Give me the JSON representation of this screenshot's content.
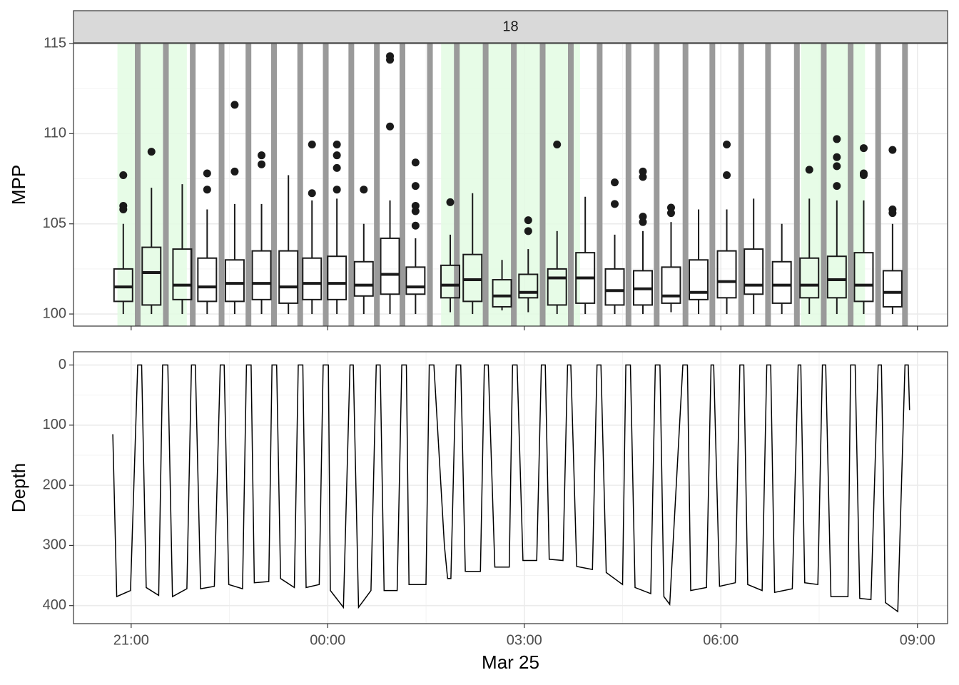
{
  "chart_data": [
    {
      "type": "box",
      "strip": "18",
      "ylabel": "MPP",
      "xlim": [
        -3.88,
        9.46
      ],
      "ylim": [
        99.33,
        115
      ],
      "yticks": [
        100,
        105,
        110,
        115
      ],
      "xticks": [
        -3,
        0,
        3,
        6,
        9
      ],
      "grid": true,
      "shaded": [
        [
          -3.21,
          -2.15
        ],
        [
          1.73,
          3.85
        ],
        [
          7.22,
          8.2
        ]
      ],
      "shade_color": "#e3fbe3",
      "surface_times": [
        -2.9,
        -2.47,
        -2.06,
        -1.62,
        -1.21,
        -0.82,
        -0.42,
        -0.03,
        0.36,
        0.75,
        1.14,
        1.56,
        1.97,
        2.41,
        2.84,
        3.28,
        3.71,
        4.15,
        4.59,
        5.02,
        5.46,
        5.87,
        6.31,
        6.72,
        7.16,
        7.57,
        7.98,
        8.4,
        8.81
      ],
      "surface_color": "#9a9a9a",
      "boxes": [
        {
          "x": -3.12,
          "low": 100,
          "q1": 100.7,
          "median": 101.5,
          "q3": 102.5,
          "high": 105,
          "outliers": [
            107.7,
            106,
            105.8
          ]
        },
        {
          "x": -2.69,
          "low": 100,
          "q1": 100.5,
          "median": 102.3,
          "q3": 103.7,
          "high": 107,
          "outliers": [
            109
          ]
        },
        {
          "x": -2.22,
          "low": 100,
          "q1": 100.8,
          "median": 101.6,
          "q3": 103.6,
          "high": 107.2,
          "outliers": []
        },
        {
          "x": -1.84,
          "low": 100,
          "q1": 100.7,
          "median": 101.5,
          "q3": 103.1,
          "high": 105.8,
          "outliers": [
            107.8,
            106.9
          ]
        },
        {
          "x": -1.42,
          "low": 100,
          "q1": 100.7,
          "median": 101.7,
          "q3": 103,
          "high": 106.1,
          "outliers": [
            111.6,
            107.9
          ]
        },
        {
          "x": -1.01,
          "low": 100,
          "q1": 100.8,
          "median": 101.7,
          "q3": 103.5,
          "high": 106.1,
          "outliers": [
            108.8,
            108.3
          ]
        },
        {
          "x": -0.6,
          "low": 100,
          "q1": 100.6,
          "median": 101.5,
          "q3": 103.5,
          "high": 107.7,
          "outliers": []
        },
        {
          "x": -0.24,
          "low": 100,
          "q1": 100.8,
          "median": 101.7,
          "q3": 103.1,
          "high": 106.3,
          "outliers": [
            109.4,
            106.7
          ]
        },
        {
          "x": 0.14,
          "low": 100,
          "q1": 100.8,
          "median": 101.7,
          "q3": 103.2,
          "high": 106.4,
          "outliers": [
            109.4,
            108.8,
            108.1,
            106.9
          ]
        },
        {
          "x": 0.55,
          "low": 100,
          "q1": 101,
          "median": 101.6,
          "q3": 102.9,
          "high": 105,
          "outliers": [
            106.9
          ]
        },
        {
          "x": 0.95,
          "low": 100,
          "q1": 101.1,
          "median": 102.2,
          "q3": 104.2,
          "high": 106.3,
          "outliers": [
            114.3,
            114.1,
            110.4
          ]
        },
        {
          "x": 1.34,
          "low": 100,
          "q1": 101.1,
          "median": 101.5,
          "q3": 102.6,
          "high": 104.2,
          "outliers": [
            108.4,
            107.1,
            106,
            105.7,
            104.9
          ]
        },
        {
          "x": 1.87,
          "low": 100.1,
          "q1": 100.9,
          "median": 101.6,
          "q3": 102.7,
          "high": 104.4,
          "outliers": [
            106.2
          ]
        },
        {
          "x": 2.21,
          "low": 100,
          "q1": 100.7,
          "median": 101.9,
          "q3": 103.3,
          "high": 106.7,
          "outliers": []
        },
        {
          "x": 2.66,
          "low": 100.2,
          "q1": 100.4,
          "median": 101,
          "q3": 101.9,
          "high": 103,
          "outliers": []
        },
        {
          "x": 3.06,
          "low": 100.1,
          "q1": 100.9,
          "median": 101.2,
          "q3": 102.2,
          "high": 103.6,
          "outliers": [
            105.2,
            104.6
          ]
        },
        {
          "x": 3.5,
          "low": 100,
          "q1": 100.5,
          "median": 102,
          "q3": 102.5,
          "high": 104.6,
          "outliers": [
            109.4
          ]
        },
        {
          "x": 3.93,
          "low": 100,
          "q1": 100.6,
          "median": 102,
          "q3": 103.4,
          "high": 106.5,
          "outliers": []
        },
        {
          "x": 4.38,
          "low": 100,
          "q1": 100.5,
          "median": 101.3,
          "q3": 102.5,
          "high": 104.4,
          "outliers": [
            107.3,
            106.1
          ]
        },
        {
          "x": 4.81,
          "low": 100,
          "q1": 100.5,
          "median": 101.4,
          "q3": 102.4,
          "high": 104.6,
          "outliers": [
            107.9,
            107.6,
            105.4,
            105.1
          ]
        },
        {
          "x": 5.24,
          "low": 100.1,
          "q1": 100.6,
          "median": 101,
          "q3": 102.6,
          "high": 105.1,
          "outliers": [
            105.9,
            105.6
          ]
        },
        {
          "x": 5.66,
          "low": 100,
          "q1": 100.8,
          "median": 101.2,
          "q3": 103,
          "high": 105.8,
          "outliers": []
        },
        {
          "x": 6.09,
          "low": 100,
          "q1": 100.9,
          "median": 101.8,
          "q3": 103.5,
          "high": 105.8,
          "outliers": [
            109.4,
            107.7
          ]
        },
        {
          "x": 6.5,
          "low": 100,
          "q1": 101.1,
          "median": 101.6,
          "q3": 103.6,
          "high": 106.4,
          "outliers": []
        },
        {
          "x": 6.93,
          "low": 100,
          "q1": 100.6,
          "median": 101.6,
          "q3": 102.9,
          "high": 105,
          "outliers": []
        },
        {
          "x": 7.35,
          "low": 100,
          "q1": 100.9,
          "median": 101.6,
          "q3": 103.1,
          "high": 106.4,
          "outliers": [
            108
          ]
        },
        {
          "x": 7.77,
          "low": 100,
          "q1": 100.9,
          "median": 101.9,
          "q3": 103.2,
          "high": 106.3,
          "outliers": [
            109.7,
            108.7,
            108.2,
            107.1
          ]
        },
        {
          "x": 8.18,
          "low": 100,
          "q1": 100.7,
          "median": 101.6,
          "q3": 103.4,
          "high": 106.3,
          "outliers": [
            109.2,
            107.8,
            107.7
          ]
        },
        {
          "x": 8.62,
          "low": 100,
          "q1": 100.4,
          "median": 101.2,
          "q3": 102.4,
          "high": 105,
          "outliers": [
            109.1,
            105.8,
            105.6
          ]
        }
      ]
    },
    {
      "type": "line",
      "xlabel": "Mar 25",
      "ylabel": "Depth",
      "xlim": [
        -3.88,
        9.46
      ],
      "ylim": [
        430,
        -22
      ],
      "yticks": [
        0,
        100,
        200,
        300,
        400
      ],
      "xticks": [
        {
          "value": -3,
          "label": "21:00"
        },
        {
          "value": 0,
          "label": "00:00"
        },
        {
          "value": 3,
          "label": "03:00"
        },
        {
          "value": 6,
          "label": "06:00"
        },
        {
          "value": 9,
          "label": "09:00"
        }
      ],
      "grid": true,
      "color": "#000000",
      "x": [
        -3.28,
        -3.22,
        -3.01,
        -2.9,
        -2.84,
        -2.77,
        -2.58,
        -2.52,
        -2.44,
        -2.37,
        -2.15,
        -2.08,
        -2.02,
        -1.94,
        -1.73,
        -1.64,
        -1.58,
        -1.51,
        -1.3,
        -1.24,
        -1.17,
        -1.12,
        -0.9,
        -0.85,
        -0.78,
        -0.72,
        -0.51,
        -0.45,
        -0.38,
        -0.33,
        -0.13,
        -0.07,
        0.01,
        0.04,
        0.24,
        0.34,
        0.39,
        0.47,
        0.66,
        0.74,
        0.8,
        0.86,
        1.06,
        1.13,
        1.2,
        1.24,
        1.5,
        1.55,
        1.62,
        1.78,
        1.83,
        1.88,
        1.96,
        2.03,
        2.1,
        2.33,
        2.39,
        2.45,
        2.55,
        2.77,
        2.82,
        2.89,
        2.98,
        3.19,
        3.26,
        3.32,
        3.38,
        3.59,
        3.66,
        3.71,
        3.8,
        4.04,
        4.11,
        4.17,
        4.25,
        4.5,
        4.55,
        4.62,
        4.69,
        4.93,
        5,
        5.07,
        5.13,
        5.22,
        5.42,
        5.49,
        5.54,
        5.78,
        5.85,
        5.89,
        5.98,
        6.22,
        6.29,
        6.35,
        6.41,
        6.63,
        6.7,
        6.76,
        6.82,
        7.09,
        7.18,
        7.22,
        7.28,
        7.48,
        7.55,
        7.6,
        7.68,
        7.94,
        7.98,
        8.05,
        8.12,
        8.29,
        8.4,
        8.45,
        8.51,
        8.7,
        8.81,
        8.86,
        8.88
      ],
      "values": [
        115,
        385,
        375,
        0,
        0,
        370,
        383,
        0,
        0,
        385,
        372,
        0,
        0,
        372,
        368,
        0,
        0,
        365,
        372,
        0,
        0,
        362,
        360,
        0,
        0,
        355,
        370,
        0,
        0,
        370,
        365,
        0,
        0,
        375,
        403,
        0,
        0,
        403,
        375,
        0,
        0,
        375,
        375,
        0,
        0,
        365,
        365,
        0,
        0,
        300,
        355,
        355,
        0,
        0,
        343,
        343,
        0,
        0,
        336,
        336,
        0,
        0,
        325,
        325,
        0,
        0,
        323,
        325,
        0,
        0,
        335,
        340,
        0,
        0,
        345,
        365,
        0,
        0,
        370,
        380,
        0,
        0,
        385,
        398,
        0,
        0,
        375,
        370,
        0,
        0,
        368,
        362,
        0,
        0,
        365,
        375,
        0,
        0,
        378,
        372,
        0,
        0,
        362,
        365,
        0,
        0,
        385,
        385,
        0,
        0,
        388,
        390,
        0,
        0,
        395,
        410,
        0,
        0,
        75
      ]
    }
  ]
}
